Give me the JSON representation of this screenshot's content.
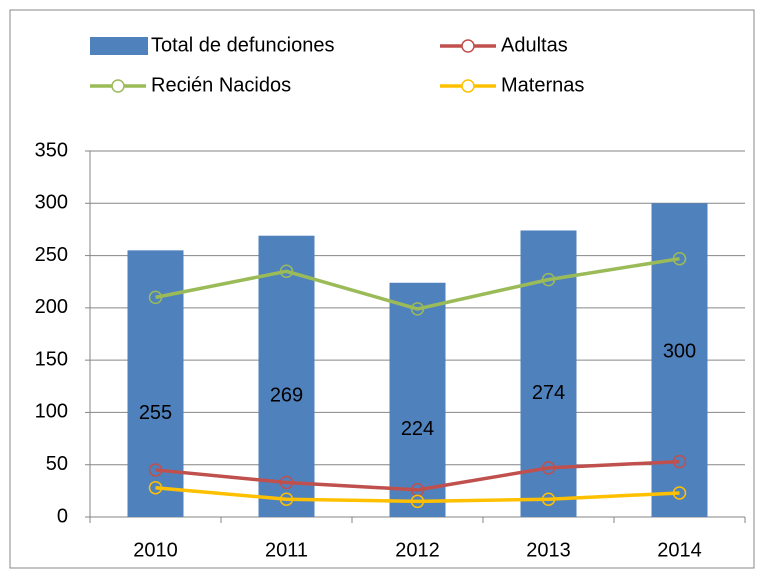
{
  "chart_data": {
    "type": "bar",
    "categories": [
      "2010",
      "2011",
      "2012",
      "2013",
      "2014"
    ],
    "series": [
      {
        "name": "Total de defunciones",
        "type": "bar",
        "color": "#4f81bd",
        "values": [
          255,
          269,
          224,
          274,
          300
        ],
        "data_labels": true
      },
      {
        "name": "Adultas",
        "type": "line",
        "color": "#c0504d",
        "values": [
          45,
          33,
          26,
          47,
          53
        ]
      },
      {
        "name": "Recién Nacidos",
        "type": "line",
        "color": "#9bbb59",
        "values": [
          210,
          235,
          199,
          227,
          247
        ]
      },
      {
        "name": "Maternas",
        "type": "line",
        "color": "#ffc000",
        "values": [
          28,
          17,
          15,
          17,
          23
        ]
      }
    ],
    "ylim": [
      0,
      350
    ],
    "yticks": [
      0,
      50,
      100,
      150,
      200,
      250,
      300,
      350
    ],
    "grid": true
  }
}
